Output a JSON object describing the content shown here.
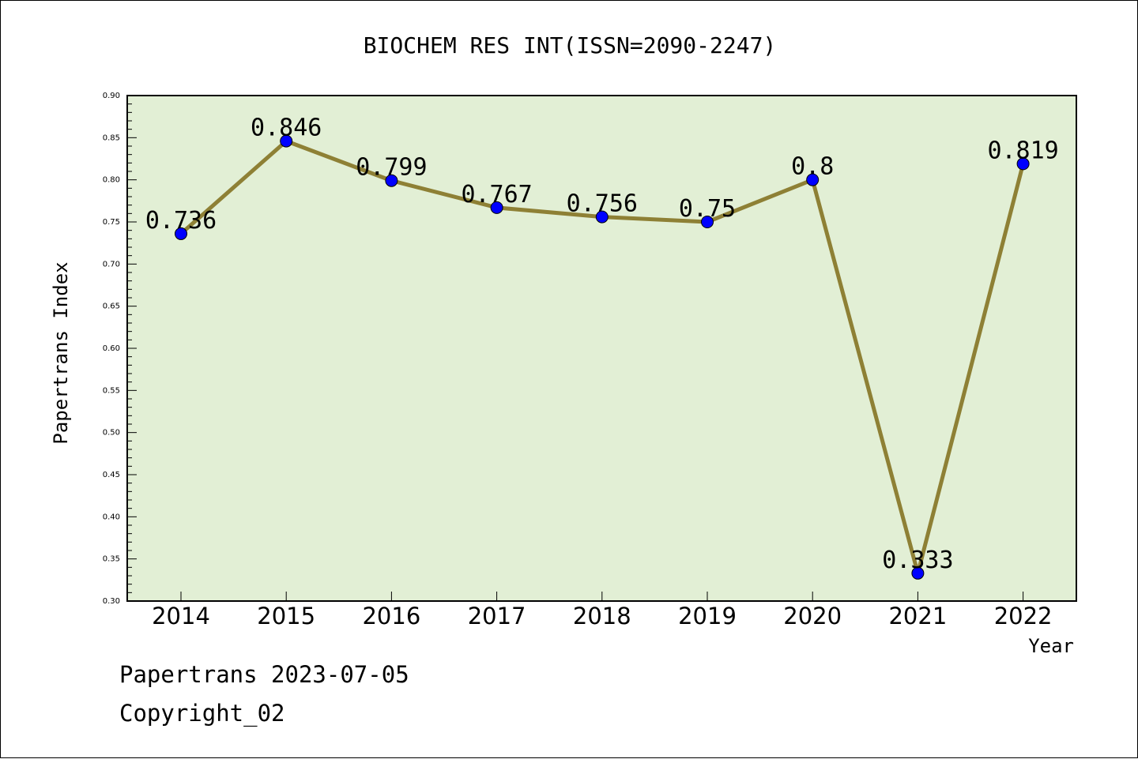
{
  "chart_data": {
    "type": "line",
    "title": "BIOCHEM RES INT(ISSN=2090-2247)",
    "xlabel": "Year",
    "ylabel": "Papertrans Index",
    "categories": [
      "2014",
      "2015",
      "2016",
      "2017",
      "2018",
      "2019",
      "2020",
      "2021",
      "2022"
    ],
    "values": [
      0.736,
      0.846,
      0.799,
      0.767,
      0.756,
      0.75,
      0.8,
      0.333,
      0.819
    ],
    "data_labels": [
      "0.736",
      "0.846",
      "0.799",
      "0.767",
      "0.756",
      "0.75",
      "0.8",
      "0.333",
      "0.819"
    ],
    "ylim": [
      0.3,
      0.9
    ],
    "yticks": [
      "0.30",
      "0.35",
      "0.40",
      "0.45",
      "0.50",
      "0.55",
      "0.60",
      "0.65",
      "0.70",
      "0.75",
      "0.80",
      "0.85",
      "0.90"
    ],
    "grid": false,
    "colors": {
      "plot_background": "#e2efd5",
      "line": "#8e8035",
      "marker": "#0000ff"
    }
  },
  "footer": {
    "line1": "Papertrans 2023-07-05",
    "line2": "Copyright_02"
  }
}
